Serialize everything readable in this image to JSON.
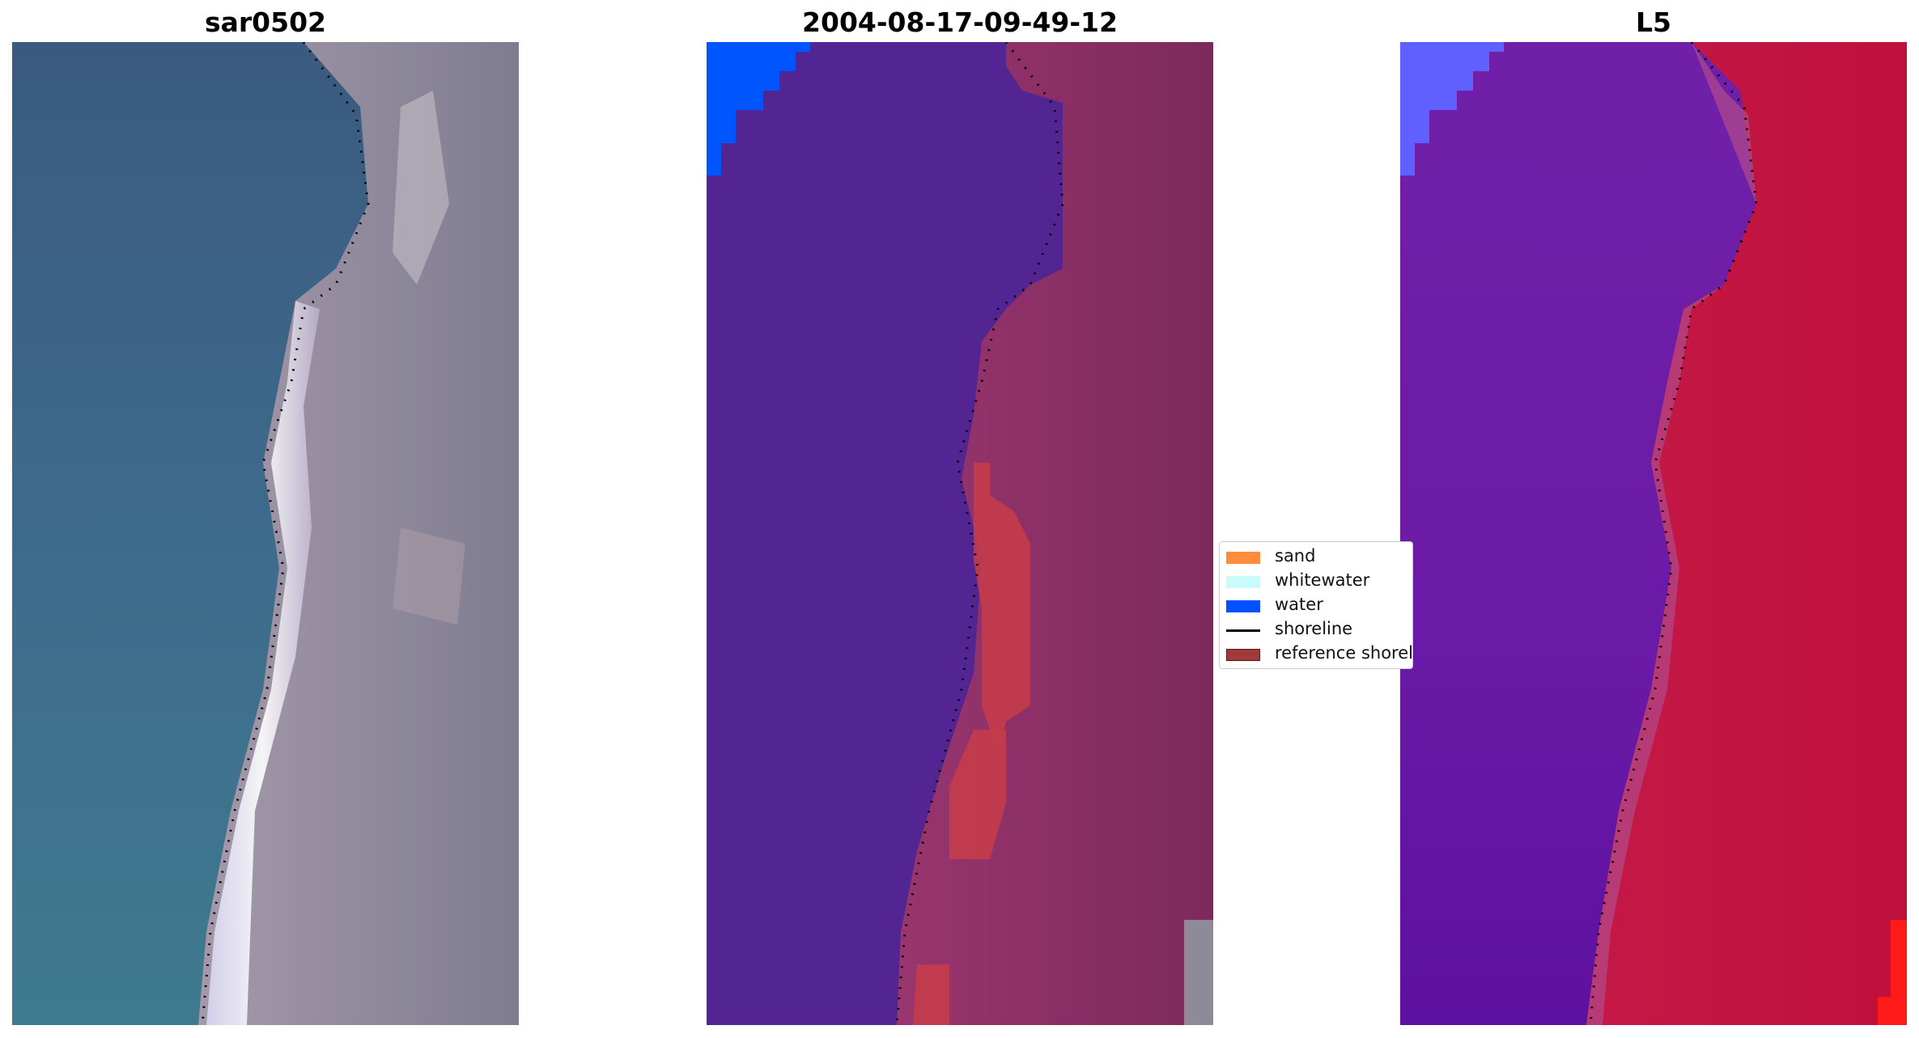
{
  "panels": [
    {
      "title": "sar0502",
      "image": "rgb-satellite-image",
      "shoreline_style": "dotted"
    },
    {
      "title": "2004-08-17-09-49-12",
      "image": "classified-image",
      "shoreline_style": "dotted"
    },
    {
      "title": "L5",
      "image": "classification-probability-image",
      "shoreline_style": "dotted"
    }
  ],
  "legend": {
    "items": [
      {
        "label": "sand",
        "color": "#ff8c3a",
        "kind": "patch"
      },
      {
        "label": "whitewater",
        "color": "#c9fbfb",
        "kind": "patch"
      },
      {
        "label": "water",
        "color": "#0050ff",
        "kind": "patch"
      },
      {
        "label": "shoreline",
        "color": "#000000",
        "kind": "line"
      },
      {
        "label": "reference shoreline",
        "color": "#a13a3a",
        "kind": "patch"
      }
    ]
  },
  "colors": {
    "ocean_blue": "#3a5f86",
    "land_gray": "#8f8a98",
    "beach_white": "#f2f0fa",
    "class_water_purple": "#522590",
    "class_land_magenta": "#98326a",
    "class_sand_red": "#c03c4c",
    "prob_purple": "#6a1aa8",
    "prob_red": "#c6103c",
    "corner_blue": "#0055ff",
    "corner_lightblue": "#6060ff"
  }
}
